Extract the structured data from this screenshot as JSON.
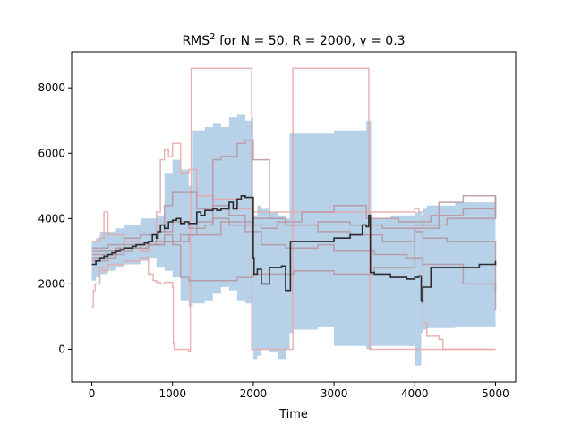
{
  "chart_data": {
    "type": "line",
    "title": "RMS",
    "title_sup": "2",
    "title_rest": " for N = 50, R = 2000, γ = 0.3",
    "xlabel": "Time",
    "ylabel": "",
    "xlim": [
      -250,
      5250
    ],
    "ylim": [
      -1000,
      9100
    ],
    "xticks": [
      0,
      1000,
      2000,
      3000,
      4000,
      5000
    ],
    "yticks": [
      0,
      2000,
      4000,
      6000,
      8000
    ],
    "grid": false,
    "colors": {
      "band": "#b7d2e8",
      "mean": "#2b2b2b",
      "red_trace": "#e8a6a6",
      "purple_trace": "#b8939c"
    },
    "band": {
      "x": [
        0,
        50,
        100,
        200,
        300,
        400,
        500,
        600,
        700,
        800,
        900,
        1000,
        1100,
        1200,
        1250,
        1400,
        1500,
        1600,
        1700,
        1800,
        1900,
        1990,
        2000,
        2050,
        2100,
        2200,
        2300,
        2400,
        2450,
        2500,
        2800,
        3000,
        3400,
        3440,
        3460,
        3700,
        4000,
        4080,
        4100,
        4150,
        4500,
        5000
      ],
      "upper": [
        3300,
        3400,
        3600,
        3600,
        3700,
        3800,
        3800,
        4000,
        4000,
        4100,
        5400,
        5800,
        5500,
        5000,
        6700,
        6800,
        6900,
        6800,
        7100,
        7200,
        7000,
        7100,
        4100,
        4400,
        4300,
        4200,
        4100,
        4000,
        6600,
        6600,
        6600,
        6700,
        7000,
        7000,
        4000,
        4100,
        4200,
        4100,
        4300,
        4400,
        4500,
        4700
      ],
      "lower": [
        2200,
        2100,
        2200,
        2300,
        2400,
        2500,
        2600,
        2600,
        2700,
        2800,
        2500,
        2400,
        2200,
        1500,
        1300,
        1400,
        1500,
        1700,
        1900,
        1800,
        1500,
        1400,
        0,
        -300,
        -200,
        0,
        -100,
        -300,
        0,
        500,
        600,
        700,
        100,
        0,
        0,
        100,
        100,
        -500,
        500,
        600,
        650,
        700
      ]
    },
    "mean": {
      "x": [
        0,
        50,
        100,
        150,
        200,
        250,
        300,
        350,
        400,
        450,
        500,
        550,
        600,
        650,
        700,
        750,
        800,
        820,
        850,
        900,
        950,
        1000,
        1050,
        1100,
        1150,
        1200,
        1300,
        1350,
        1400,
        1500,
        1550,
        1600,
        1700,
        1750,
        1800,
        1850,
        1900,
        1950,
        2000,
        2010,
        2050,
        2060,
        2100,
        2150,
        2200,
        2250,
        2300,
        2350,
        2400,
        2450,
        2460,
        2600,
        2800,
        3000,
        3100,
        3200,
        3300,
        3350,
        3400,
        3430,
        3440,
        3450,
        3500,
        3600,
        3700,
        3800,
        3900,
        4000,
        4050,
        4080,
        4090,
        4100,
        4200,
        4400,
        4800,
        5000
      ],
      "y": [
        2600,
        2700,
        2800,
        2850,
        2900,
        2950,
        3000,
        3050,
        3100,
        3100,
        3150,
        3200,
        3200,
        3250,
        3300,
        3500,
        3400,
        3600,
        3800,
        3700,
        3900,
        3950,
        4000,
        3850,
        3900,
        3850,
        4200,
        4100,
        4250,
        4300,
        4250,
        4300,
        4500,
        4300,
        4600,
        4700,
        4650,
        4650,
        2800,
        2300,
        2450,
        2450,
        2000,
        2000,
        2500,
        2500,
        2500,
        2550,
        1800,
        1800,
        3300,
        3300,
        3300,
        3400,
        3400,
        3500,
        3500,
        3800,
        3750,
        4100,
        4100,
        2350,
        2300,
        2300,
        2200,
        2200,
        2150,
        2200,
        2250,
        1500,
        1450,
        1900,
        2500,
        2500,
        2600,
        2700
      ]
    },
    "traces": [
      {
        "color": "red",
        "x": [
          0,
          20,
          40,
          100,
          150,
          200,
          400,
          600,
          700,
          760,
          800,
          850,
          900,
          1000,
          1010,
          1020,
          1200,
          1220,
          1230,
          1600,
          1650,
          1800,
          1850,
          1900,
          1970,
          1980,
          2480,
          2490,
          2500,
          3420,
          3430,
          3440,
          4400,
          5000
        ],
        "y": [
          1300,
          1800,
          2000,
          2500,
          2400,
          2600,
          2700,
          2800,
          2300,
          2100,
          2050,
          2000,
          2050,
          1900,
          200,
          0,
          -50,
          4000,
          8600,
          8600,
          8600,
          8600,
          8600,
          8600,
          8600,
          0,
          0,
          8600,
          8600,
          8600,
          4200,
          0,
          0,
          0
        ]
      },
      {
        "color": "red",
        "x": [
          0,
          100,
          150,
          200,
          400,
          600,
          700,
          800,
          850,
          900,
          950,
          1000,
          1100,
          1200,
          1300,
          1500,
          1800,
          1950,
          1980,
          2000,
          4000,
          4050,
          4100,
          4150,
          4300,
          4350,
          5000
        ],
        "y": [
          3300,
          3400,
          4200,
          3500,
          3300,
          3000,
          3200,
          4200,
          5800,
          6100,
          5900,
          6300,
          5400,
          5500,
          4700,
          4600,
          4300,
          4300,
          4300,
          4200,
          4300,
          4200,
          800,
          400,
          300,
          0,
          0
        ]
      },
      {
        "color": "purple",
        "x": [
          0,
          300,
          500,
          700,
          800,
          900,
          1000,
          1300,
          1500,
          1600,
          1800,
          1900,
          2000,
          2200,
          2400,
          2800,
          3200,
          3600,
          4000,
          4100,
          4400,
          5000
        ],
        "y": [
          2800,
          3000,
          3100,
          3300,
          3600,
          4400,
          4800,
          4300,
          5800,
          5900,
          6300,
          6400,
          5800,
          4000,
          3800,
          3900,
          3800,
          3700,
          3600,
          3400,
          3300,
          1200
        ]
      },
      {
        "color": "purple",
        "x": [
          0,
          200,
          400,
          600,
          800,
          1000,
          1200,
          1400,
          1500,
          1700,
          1900,
          2100,
          2400,
          2800,
          3000,
          3500,
          3900,
          4100,
          4600,
          5000
        ],
        "y": [
          3100,
          3200,
          3400,
          3500,
          3600,
          3900,
          3700,
          3800,
          4000,
          3800,
          3600,
          3200,
          3100,
          3200,
          3000,
          2900,
          2800,
          2600,
          2000,
          1800
        ]
      },
      {
        "color": "purple",
        "x": [
          0,
          300,
          600,
          900,
          1000,
          1100,
          1200,
          1400,
          1800,
          2000,
          2500,
          3000,
          3500,
          4000,
          4300,
          4600,
          5000
        ],
        "y": [
          2900,
          3100,
          3200,
          3500,
          3200,
          2200,
          2100,
          2100,
          2200,
          2300,
          2400,
          2300,
          2500,
          3700,
          4500,
          4700,
          4000
        ]
      },
      {
        "color": "purple",
        "x": [
          0,
          200,
          400,
          700,
          900,
          1100,
          1300,
          1500,
          1700,
          1900,
          2100,
          2300,
          2600,
          3000,
          3400,
          3800,
          4200,
          4600,
          5000
        ],
        "y": [
          2700,
          2900,
          3100,
          3200,
          3300,
          3500,
          3900,
          4400,
          4100,
          3800,
          3700,
          3900,
          4200,
          4400,
          4000,
          3900,
          4100,
          4300,
          4700
        ]
      },
      {
        "color": "purple",
        "x": [
          0,
          400,
          800,
          1200,
          1600,
          2000,
          2400,
          2800,
          3200,
          3600,
          4000,
          4400,
          5000
        ],
        "y": [
          3000,
          3200,
          3300,
          3500,
          3900,
          4000,
          3800,
          3600,
          3500,
          3300,
          3800,
          4000,
          4400
        ]
      }
    ]
  }
}
